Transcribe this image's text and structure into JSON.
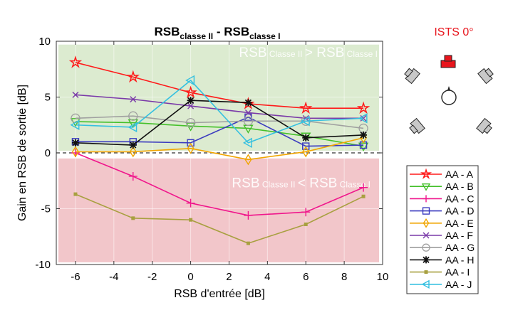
{
  "chart_data": {
    "type": "line",
    "title": {
      "part1": "RSB",
      "sub1": "classe II",
      "part2": " - RSB",
      "sub2": "classe I"
    },
    "xlabel": "RSB d'entrée [dB]",
    "ylabel": "Gain en RSB de sortie [dB]",
    "xlim": [
      -7,
      10
    ],
    "ylim": [
      -10,
      10
    ],
    "xticks": [
      -6,
      -4,
      -2,
      0,
      2,
      4,
      6,
      8,
      10
    ],
    "yticks": [
      -10,
      -5,
      0,
      5,
      10
    ],
    "grid": true,
    "legend_position": "right",
    "regions": [
      {
        "from": 0,
        "to": 10,
        "color": "#dcebd0",
        "label_main1": "RSB",
        "label_sub1": "Classe II",
        "label_op": ">",
        "label_main2": "RSB",
        "label_sub2": "Classe I"
      },
      {
        "from": -10,
        "to": -0.5,
        "color": "#f2c6ca",
        "label_main1": "RSB",
        "label_sub1": "Classe II",
        "label_op": "<",
        "label_main2": "RSB",
        "label_sub2": "Classe I"
      }
    ],
    "x": [
      -6,
      -3,
      0,
      3,
      6,
      9
    ],
    "series": [
      {
        "name": "AA - A",
        "color": "#ff1a1a",
        "marker": "star",
        "values": [
          8.1,
          6.8,
          5.4,
          4.4,
          4.0,
          4.0
        ]
      },
      {
        "name": "AA - B",
        "color": "#44c02a",
        "marker": "triangle-down",
        "values": [
          2.8,
          2.7,
          2.4,
          2.2,
          1.5,
          0.6
        ]
      },
      {
        "name": "AA - C",
        "color": "#f0168c",
        "marker": "plus",
        "values": [
          0.0,
          -2.1,
          -4.5,
          -5.6,
          -5.3,
          -3.1
        ]
      },
      {
        "name": "AA - D",
        "color": "#3b3bbf",
        "marker": "square",
        "values": [
          1.0,
          1.0,
          0.9,
          3.2,
          0.6,
          0.7
        ]
      },
      {
        "name": "AA - E",
        "color": "#f0a500",
        "marker": "diamond",
        "values": [
          0.1,
          0.1,
          0.4,
          -0.6,
          0.1,
          1.35
        ]
      },
      {
        "name": "AA - F",
        "color": "#7a3aa8",
        "marker": "x",
        "values": [
          5.2,
          4.8,
          4.2,
          3.6,
          3.1,
          3.1
        ]
      },
      {
        "name": "AA - G",
        "color": "#a0a0a0",
        "marker": "circle",
        "values": [
          3.1,
          3.3,
          2.7,
          2.85,
          2.85,
          2.2
        ]
      },
      {
        "name": "AA - H",
        "color": "#111111",
        "marker": "asterisk",
        "values": [
          0.9,
          0.7,
          4.7,
          4.5,
          1.35,
          1.6
        ]
      },
      {
        "name": "AA - I",
        "color": "#a8a040",
        "marker": "dot",
        "values": [
          -3.7,
          -5.85,
          -6.0,
          -8.1,
          -6.4,
          -3.9
        ]
      },
      {
        "name": "AA - J",
        "color": "#35c0e0",
        "marker": "triangle-left",
        "values": [
          2.5,
          2.3,
          6.5,
          0.9,
          2.85,
          3.1
        ]
      }
    ]
  },
  "diagram": {
    "label": "ISTS 0°",
    "active_color": "#e8141c"
  }
}
